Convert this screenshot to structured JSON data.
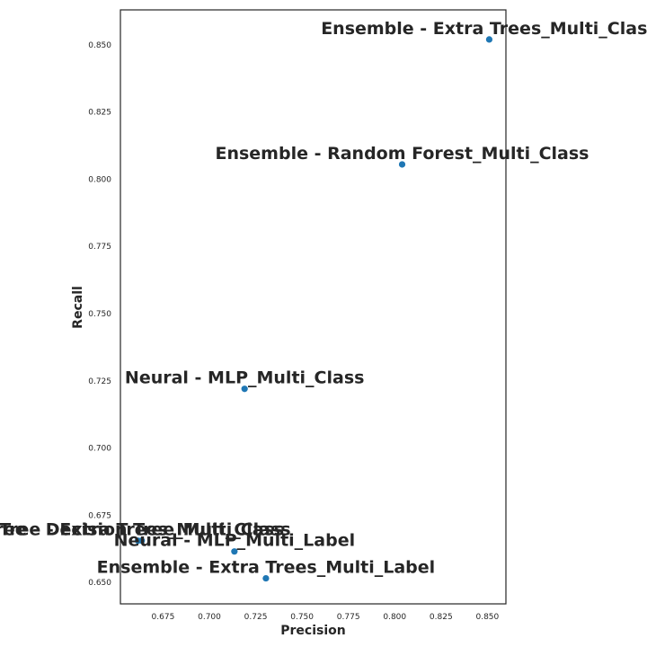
{
  "chart_data": {
    "type": "scatter",
    "title": "",
    "xlabel": "Precision",
    "ylabel": "Recall",
    "xlim": [
      0.652,
      0.86
    ],
    "ylim": [
      0.642,
      0.863
    ],
    "xticks": [
      0.675,
      0.7,
      0.725,
      0.75,
      0.775,
      0.8,
      0.825,
      0.85
    ],
    "xtick_labels": [
      "0.675",
      "0.700",
      "0.725",
      "0.750",
      "0.775",
      "0.800",
      "0.825",
      "0.850"
    ],
    "yticks": [
      0.65,
      0.675,
      0.7,
      0.725,
      0.75,
      0.775,
      0.8,
      0.825,
      0.85
    ],
    "ytick_labels": [
      "0.650",
      "0.675",
      "0.700",
      "0.725",
      "0.750",
      "0.775",
      "0.800",
      "0.825",
      "0.850"
    ],
    "grid": false,
    "marker_color": "#1f77b4",
    "points": [
      {
        "label": "Ensemble - Extra Trees_Multi_Class",
        "x": 0.851,
        "y": 0.852
      },
      {
        "label": "Ensemble - Random Forest_Multi_Class",
        "x": 0.804,
        "y": 0.8055
      },
      {
        "label": "Neural - MLP_Multi_Class",
        "x": 0.719,
        "y": 0.722
      },
      {
        "label": "Tree - Decision Tree_Multi_Class",
        "x": 0.6615,
        "y": 0.6655
      },
      {
        "label": "Tree - Extra Trees_Multi_Class",
        "x": 0.6635,
        "y": 0.6655
      },
      {
        "label": "Neural - MLP_Multi_Label",
        "x": 0.7135,
        "y": 0.6615
      },
      {
        "label": "Ensemble - Extra Trees_Multi_Label",
        "x": 0.7305,
        "y": 0.6515
      }
    ]
  }
}
